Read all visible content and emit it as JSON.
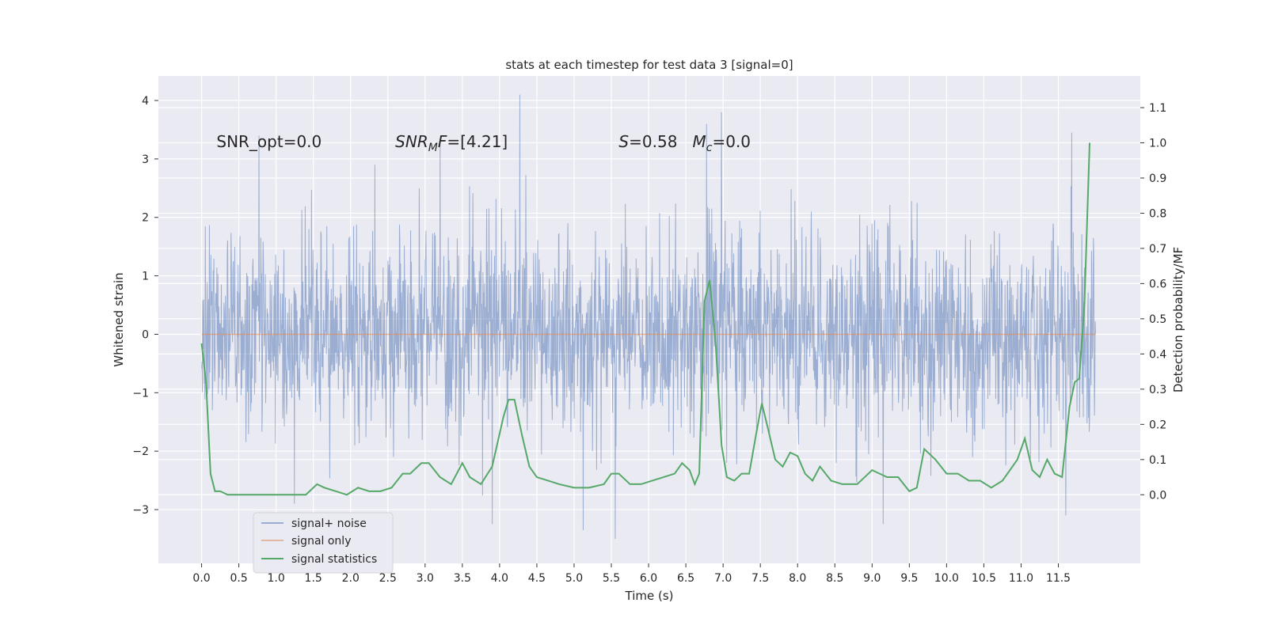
{
  "chart_data": {
    "type": "line",
    "title": "stats at each timestep for test data 3 [signal=0]",
    "xlabel": "Time (s)",
    "ylabel": "Whitened strain",
    "ylabel_right": "Detection probability/MF",
    "xlim": [
      -0.58,
      12.6
    ],
    "ylim": [
      -3.92,
      4.42
    ],
    "ylim_right": [
      -0.195,
      1.19
    ],
    "x_ticks": [
      0.0,
      0.5,
      1.0,
      1.5,
      2.0,
      2.5,
      3.0,
      3.5,
      4.0,
      4.5,
      5.0,
      5.5,
      6.0,
      6.5,
      7.0,
      7.5,
      8.0,
      8.5,
      9.0,
      9.5,
      10.0,
      10.5,
      11.0,
      11.5
    ],
    "x_tick_labels": [
      "0.0",
      "0.5",
      "1.0",
      "1.5",
      "2.0",
      "2.5",
      "3.0",
      "3.5",
      "4.0",
      "4.5",
      "5.0",
      "5.5",
      "6.0",
      "6.5",
      "7.0",
      "7.5",
      "8.0",
      "8.5",
      "9.0",
      "9.5",
      "10.0",
      "10.5",
      "11.0",
      "11.5"
    ],
    "y_ticks": [
      -3,
      -2,
      -1,
      0,
      1,
      2,
      3,
      4
    ],
    "y_tick_labels": [
      "−3",
      "−2",
      "−1",
      "0",
      "1",
      "2",
      "3",
      "4"
    ],
    "y_ticks_right": [
      0.0,
      0.1,
      0.2,
      0.3,
      0.4,
      0.5,
      0.6,
      0.7,
      0.8,
      0.9,
      1.0,
      1.1
    ],
    "y_tick_labels_right": [
      "0.0",
      "0.1",
      "0.2",
      "0.3",
      "0.4",
      "0.5",
      "0.6",
      "0.7",
      "0.8",
      "0.9",
      "1.0",
      "1.1"
    ],
    "annotations": [
      {
        "id": "snr-opt",
        "text": "SNR_opt=0.0",
        "x": 0.2,
        "y": 3.2
      },
      {
        "id": "snr-mf",
        "text": "SNR_MF=[4.21]",
        "x": 2.6,
        "y": 3.2
      },
      {
        "id": "s-mc",
        "text": "S=0.58   M_c=0.0",
        "x": 5.6,
        "y": 3.2
      }
    ],
    "series": [
      {
        "name": "signal+ noise",
        "axis": "left",
        "color": "#4c72b0",
        "x_range": [
          0.0,
          12.0
        ],
        "samples": 2400,
        "sigma": 0.85,
        "envelope_peaks": [
          {
            "x": 0.77,
            "y": 3.4
          },
          {
            "x": 3.2,
            "y": 3.3
          },
          {
            "x": 4.27,
            "y": 4.1
          },
          {
            "x": 6.78,
            "y": 3.6
          },
          {
            "x": 6.98,
            "y": 3.8
          },
          {
            "x": 11.68,
            "y": 3.45
          },
          {
            "x": 3.9,
            "y": -3.25
          },
          {
            "x": 5.12,
            "y": -3.35
          },
          {
            "x": 5.55,
            "y": -3.5
          },
          {
            "x": 9.15,
            "y": -3.25
          },
          {
            "x": 11.6,
            "y": -3.1
          }
        ]
      },
      {
        "name": "signal only",
        "axis": "left",
        "color": "#dd8452",
        "x": [
          0.0,
          12.0
        ],
        "y": [
          0.0,
          0.0
        ]
      },
      {
        "name": "signal statistics",
        "axis": "right",
        "color": "#55a868",
        "x": [
          0.0,
          0.06,
          0.12,
          0.18,
          0.25,
          0.35,
          0.45,
          0.6,
          0.75,
          0.9,
          1.0,
          1.2,
          1.4,
          1.55,
          1.65,
          1.8,
          1.95,
          2.1,
          2.25,
          2.4,
          2.55,
          2.7,
          2.8,
          2.95,
          3.05,
          3.2,
          3.35,
          3.5,
          3.6,
          3.75,
          3.9,
          4.05,
          4.12,
          4.2,
          4.3,
          4.4,
          4.5,
          4.65,
          4.8,
          5.0,
          5.2,
          5.4,
          5.5,
          5.6,
          5.75,
          5.9,
          6.05,
          6.2,
          6.35,
          6.45,
          6.55,
          6.62,
          6.68,
          6.75,
          6.82,
          6.9,
          6.98,
          7.05,
          7.15,
          7.25,
          7.35,
          7.45,
          7.52,
          7.6,
          7.7,
          7.8,
          7.9,
          8.0,
          8.1,
          8.2,
          8.3,
          8.45,
          8.6,
          8.8,
          9.0,
          9.2,
          9.35,
          9.5,
          9.6,
          9.7,
          9.85,
          10.0,
          10.15,
          10.3,
          10.45,
          10.6,
          10.75,
          10.85,
          10.95,
          11.05,
          11.15,
          11.25,
          11.35,
          11.45,
          11.55,
          11.65,
          11.72,
          11.78,
          11.85,
          11.92
        ],
        "y": [
          0.43,
          0.32,
          0.06,
          0.01,
          0.01,
          0.0,
          0.0,
          0.0,
          0.0,
          0.0,
          0.0,
          0.0,
          0.0,
          0.03,
          0.02,
          0.01,
          0.0,
          0.02,
          0.01,
          0.01,
          0.02,
          0.06,
          0.06,
          0.09,
          0.09,
          0.05,
          0.03,
          0.09,
          0.05,
          0.03,
          0.08,
          0.22,
          0.27,
          0.27,
          0.17,
          0.08,
          0.05,
          0.04,
          0.03,
          0.02,
          0.02,
          0.03,
          0.06,
          0.06,
          0.03,
          0.03,
          0.04,
          0.05,
          0.06,
          0.09,
          0.07,
          0.03,
          0.06,
          0.55,
          0.61,
          0.43,
          0.14,
          0.05,
          0.04,
          0.06,
          0.06,
          0.18,
          0.26,
          0.19,
          0.1,
          0.08,
          0.12,
          0.11,
          0.06,
          0.04,
          0.08,
          0.04,
          0.03,
          0.03,
          0.07,
          0.05,
          0.05,
          0.01,
          0.02,
          0.13,
          0.1,
          0.06,
          0.06,
          0.04,
          0.04,
          0.02,
          0.04,
          0.07,
          0.1,
          0.16,
          0.07,
          0.05,
          0.1,
          0.06,
          0.05,
          0.25,
          0.32,
          0.33,
          0.54,
          1.0
        ]
      }
    ],
    "legend": {
      "placement": "lower-left",
      "items": [
        "signal+ noise",
        "signal only",
        "signal statistics"
      ]
    },
    "grid": true
  }
}
